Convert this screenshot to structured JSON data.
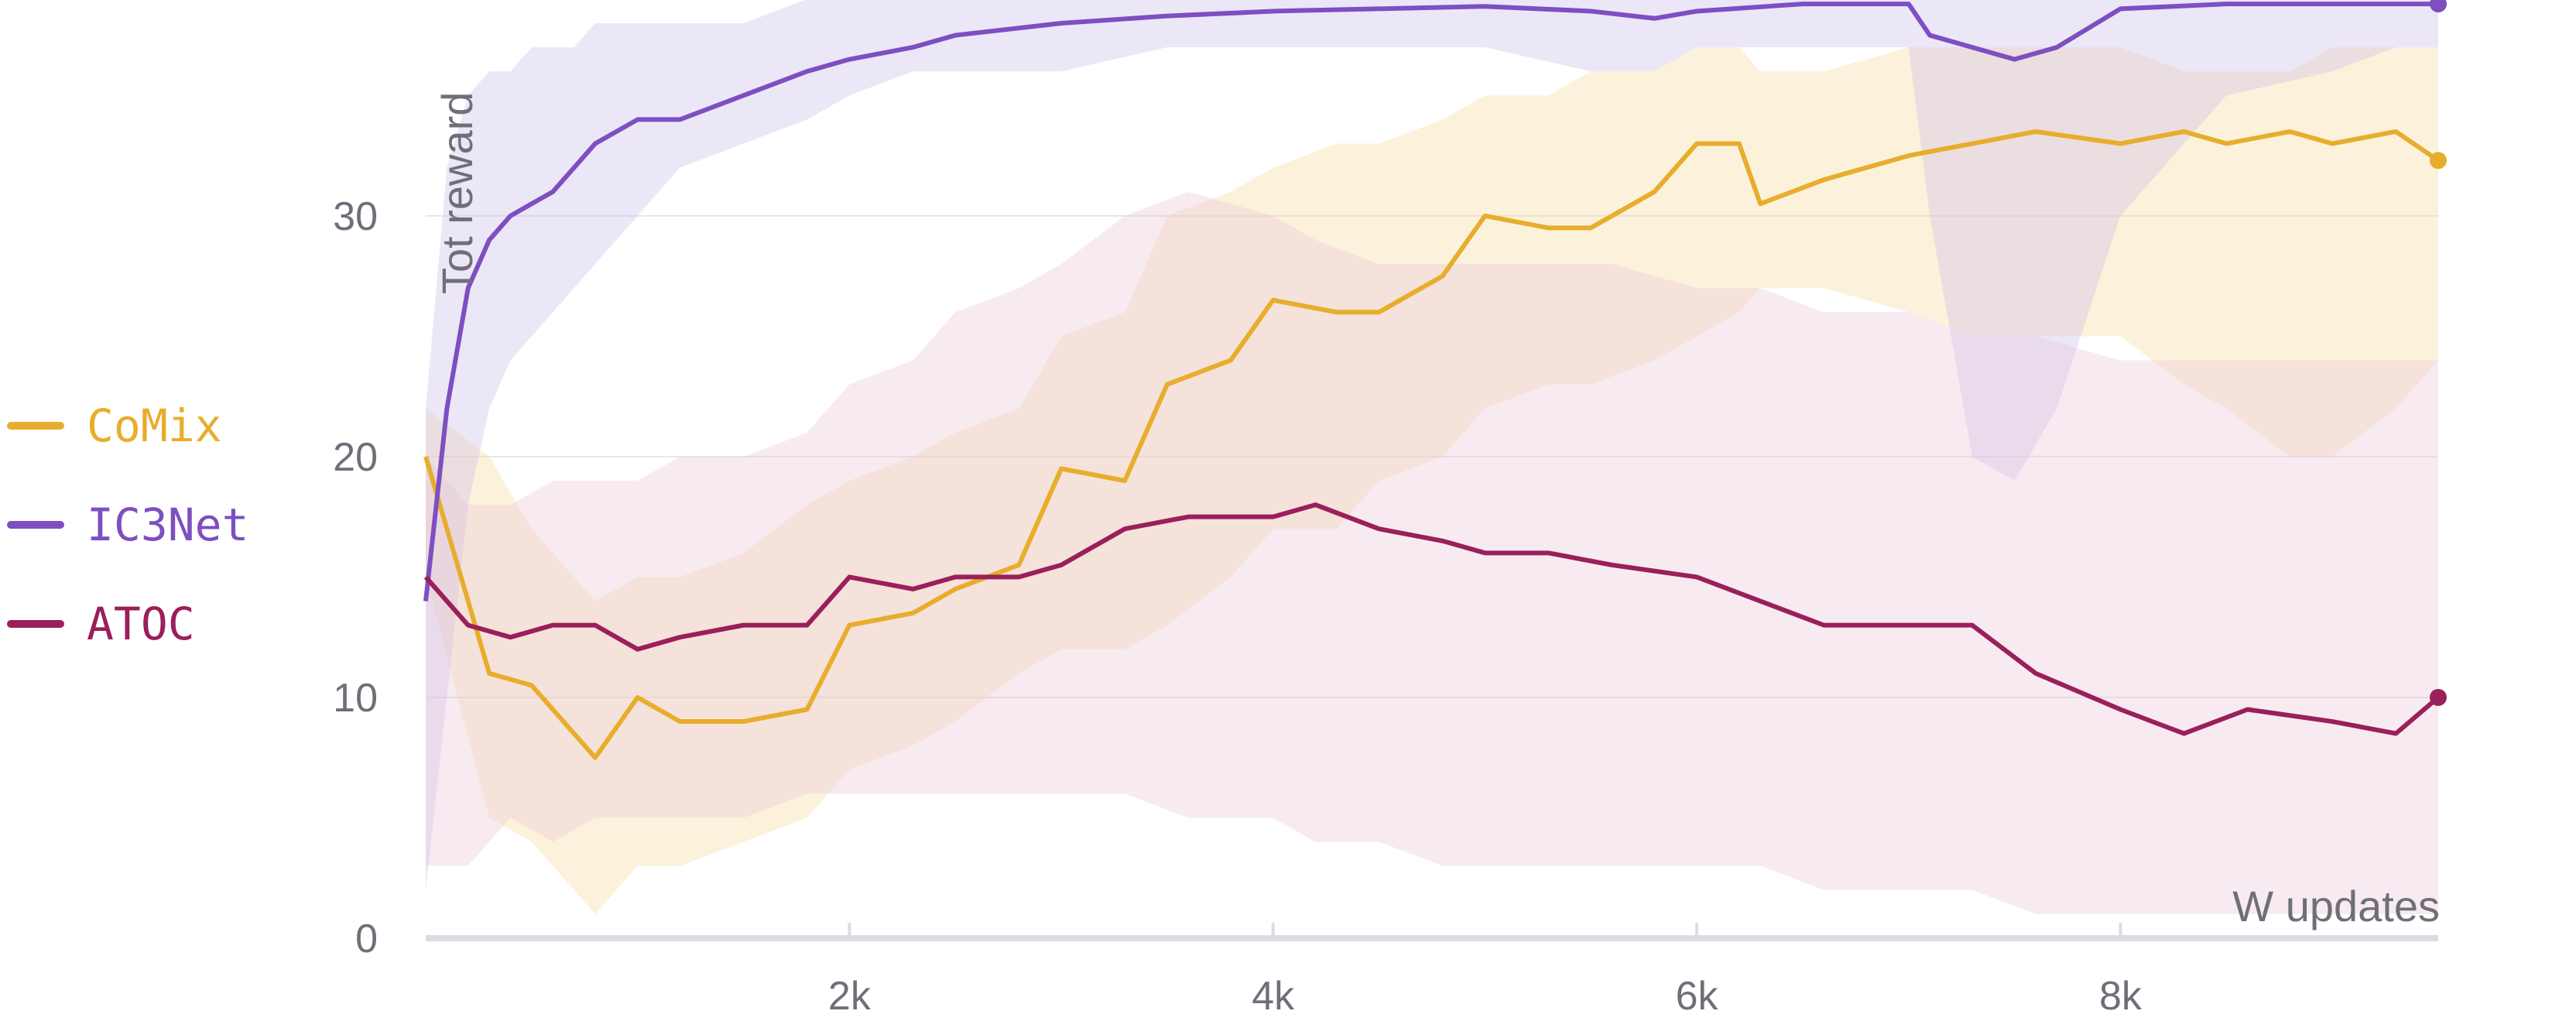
{
  "chart_data": {
    "type": "line",
    "xlabel": "W updates",
    "ylabel": "Tot reward",
    "xlim": [
      0,
      9500
    ],
    "ylim": [
      0,
      38
    ],
    "x_ticks": [
      {
        "value": 2000,
        "label": "2k"
      },
      {
        "value": 4000,
        "label": "4k"
      },
      {
        "value": 6000,
        "label": "6k"
      },
      {
        "value": 8000,
        "label": "8k"
      }
    ],
    "y_ticks": [
      {
        "value": 0,
        "label": "0"
      },
      {
        "value": 10,
        "label": "10"
      },
      {
        "value": 20,
        "label": "20"
      },
      {
        "value": 30,
        "label": "30"
      }
    ],
    "grid": "horizontal",
    "legend_position": "left",
    "series": [
      {
        "name": "CoMix",
        "color": "#e8ad2c",
        "band_color": "#f5d99a",
        "x": [
          0,
          300,
          500,
          800,
          1000,
          1200,
          1500,
          1800,
          2000,
          2300,
          2500,
          2800,
          3000,
          3300,
          3500,
          3800,
          4000,
          4300,
          4500,
          4800,
          5000,
          5300,
          5500,
          5800,
          6000,
          6200,
          6300,
          6600,
          7000,
          7300,
          7600,
          8000,
          8300,
          8500,
          8800,
          9000,
          9300,
          9500
        ],
        "y": [
          20,
          11,
          10.5,
          7.5,
          10,
          9,
          9,
          9.5,
          13,
          13.5,
          14.5,
          15.5,
          19.5,
          19,
          23,
          24,
          26.5,
          26,
          26,
          27.5,
          30,
          29.5,
          29.5,
          31,
          33,
          33,
          30.5,
          31.5,
          32.5,
          33,
          33.5,
          33,
          33.5,
          33,
          33.5,
          33,
          33.5,
          32.3
        ],
        "lower": [
          15,
          5,
          4,
          1,
          3,
          3,
          4,
          5,
          7,
          8,
          9,
          11,
          12,
          12,
          13,
          15,
          17,
          17,
          19,
          20,
          22,
          23,
          23,
          24,
          25,
          26,
          27,
          27,
          26,
          25,
          25,
          25,
          23,
          22,
          20,
          20,
          22,
          24
        ],
        "upper": [
          22,
          20,
          17,
          14,
          15,
          15,
          16,
          18,
          19,
          20,
          21,
          22,
          25,
          26,
          30,
          31,
          32,
          33,
          33,
          34,
          35,
          35,
          36,
          36,
          37,
          37,
          36,
          36,
          37,
          37,
          37,
          37,
          36,
          36,
          36,
          37,
          37,
          37
        ]
      },
      {
        "name": "IC3Net",
        "color": "#7d4fc0",
        "band_color": "#c9b9e8",
        "x": [
          0,
          100,
          200,
          300,
          400,
          500,
          600,
          700,
          800,
          1000,
          1200,
          1500,
          1800,
          2000,
          2300,
          2500,
          3000,
          3500,
          4000,
          4500,
          5000,
          5500,
          5800,
          6000,
          6500,
          7000,
          7100,
          7300,
          7500,
          7700,
          8000,
          8500,
          9000,
          9300,
          9500
        ],
        "y": [
          14,
          22,
          27,
          29,
          30,
          30.5,
          31,
          32,
          33,
          34,
          34,
          35,
          36,
          36.5,
          37,
          37.5,
          38,
          38.3,
          38.5,
          38.6,
          38.7,
          38.5,
          38.2,
          38.5,
          38.8,
          38.8,
          37.5,
          37,
          36.5,
          37,
          38.6,
          38.8,
          38.8,
          38.8,
          38.8
        ],
        "lower": [
          2,
          10,
          18,
          22,
          24,
          25,
          26,
          27,
          28,
          30,
          32,
          33,
          34,
          35,
          36,
          36,
          36,
          37,
          37,
          37,
          37,
          36,
          36,
          37,
          37,
          37,
          30,
          20,
          19,
          22,
          30,
          35,
          36,
          37,
          37
        ],
        "upper": [
          22,
          32,
          35,
          36,
          36,
          37,
          37,
          37,
          38,
          38,
          38,
          38,
          39,
          39,
          39,
          39,
          39,
          39,
          39,
          39,
          39,
          39,
          39,
          39,
          39,
          39,
          39,
          39,
          39,
          39,
          39,
          39,
          39,
          39,
          39
        ]
      },
      {
        "name": "ATOC",
        "color": "#9a1f5a",
        "band_color": "#e7c6d6",
        "x": [
          0,
          200,
          400,
          600,
          800,
          1000,
          1200,
          1500,
          1800,
          2000,
          2300,
          2500,
          2800,
          3000,
          3300,
          3600,
          4000,
          4200,
          4500,
          4800,
          5000,
          5300,
          5600,
          6000,
          6300,
          6600,
          7000,
          7300,
          7600,
          8000,
          8300,
          8600,
          9000,
          9300,
          9500
        ],
        "y": [
          15,
          13,
          12.5,
          13,
          13,
          12,
          12.5,
          13,
          13,
          15,
          14.5,
          15,
          15,
          15.5,
          17,
          17.5,
          17.5,
          18,
          17,
          16.5,
          16,
          16,
          15.5,
          15,
          14,
          13,
          13,
          13,
          11,
          9.5,
          8.5,
          9.5,
          9,
          8.5,
          10
        ],
        "lower": [
          3,
          3,
          5,
          4,
          5,
          5,
          5,
          5,
          6,
          6,
          6,
          6,
          6,
          6,
          6,
          5,
          5,
          4,
          4,
          3,
          3,
          3,
          3,
          3,
          3,
          2,
          2,
          2,
          1,
          1,
          1,
          1,
          1,
          1,
          1
        ],
        "upper": [
          20,
          18,
          18,
          19,
          19,
          19,
          20,
          20,
          21,
          23,
          24,
          26,
          27,
          28,
          30,
          31,
          30,
          29,
          28,
          28,
          28,
          28,
          28,
          27,
          27,
          26,
          26,
          25,
          25,
          24,
          24,
          24,
          24,
          24,
          24
        ]
      }
    ]
  }
}
